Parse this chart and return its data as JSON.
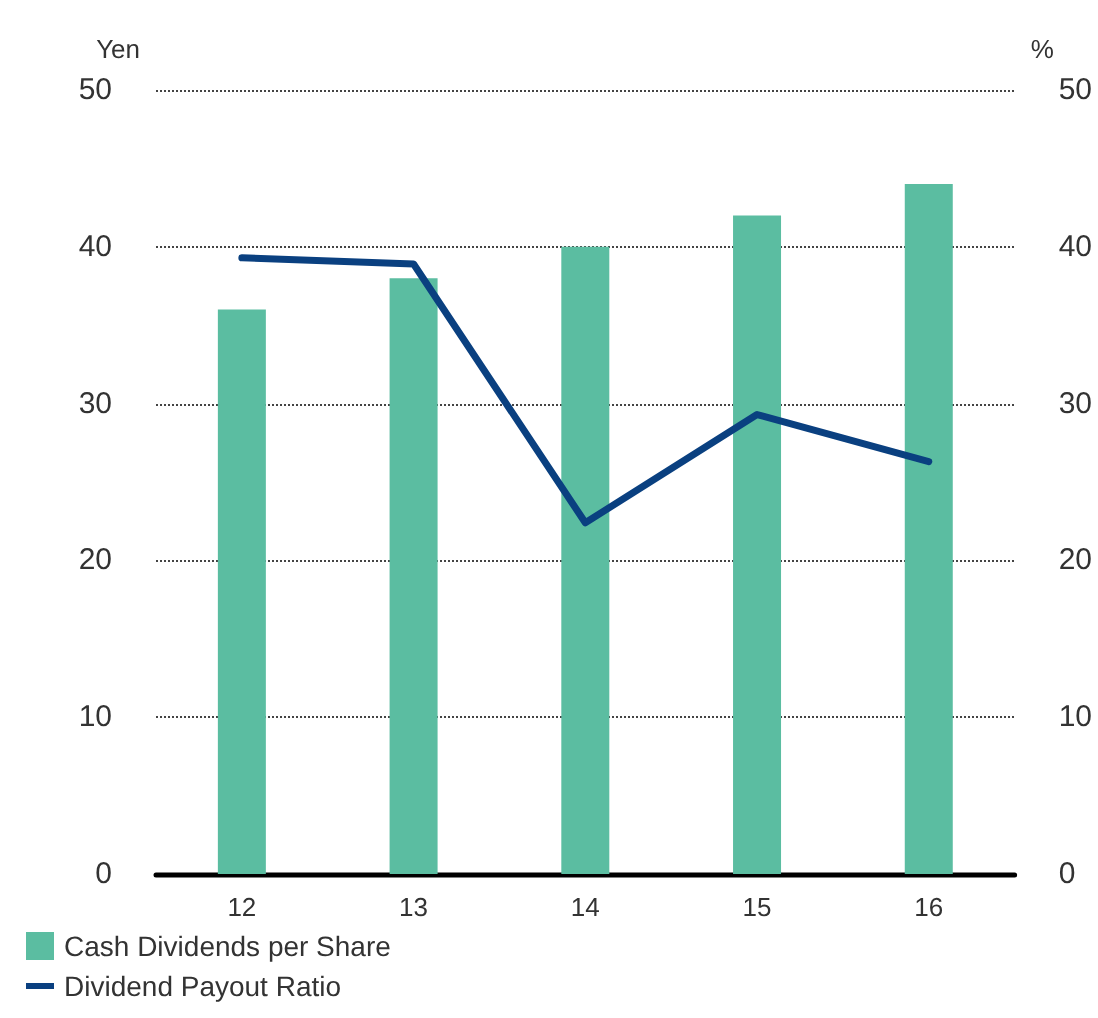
{
  "chart_data": {
    "type": "bar",
    "categories": [
      "12",
      "13",
      "14",
      "15",
      "16"
    ],
    "series": [
      {
        "name": "Cash Dividends per Share",
        "color": "#5bbda1",
        "values": [
          36,
          38,
          40,
          42,
          44
        ]
      },
      {
        "name": "Dividend Payout Ratio",
        "type": "line",
        "axis": "y2",
        "color": "#0a4080",
        "values": [
          39.3,
          38.9,
          22.4,
          29.3,
          26.3
        ]
      }
    ],
    "ylabel": "Yen",
    "y2label": "%",
    "ylim": [
      0,
      50
    ],
    "yticks": [
      0,
      10,
      20,
      30,
      40,
      50
    ],
    "y2lim": [
      0,
      50
    ],
    "y2ticks": [
      0,
      10,
      20,
      30,
      40,
      50
    ],
    "grid": "y",
    "legend": "bottom left",
    "marker": "none",
    "line_style": "solid"
  }
}
